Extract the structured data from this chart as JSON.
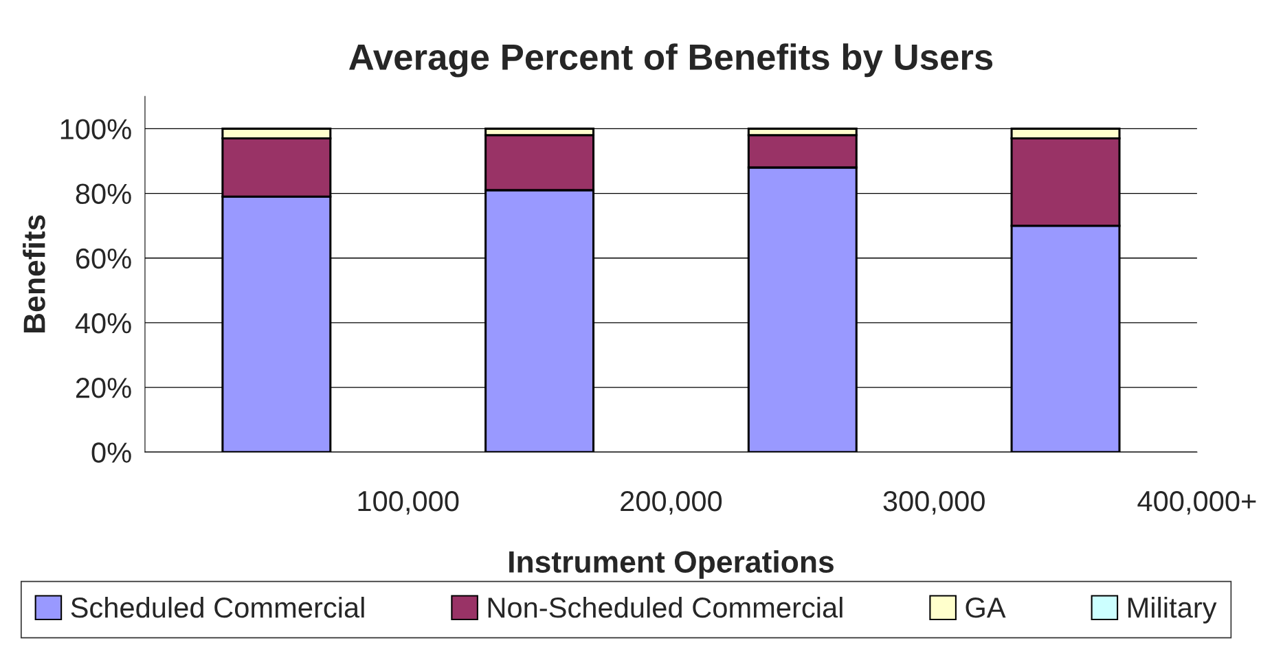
{
  "chart_data": {
    "type": "bar",
    "title": "Average Percent of Benefits by Users",
    "xlabel": "Instrument Operations",
    "ylabel": "Benefits",
    "categories": [
      "100,000",
      "200,000",
      "300,000",
      "400,000+"
    ],
    "stacked": true,
    "series": [
      {
        "name": "Scheduled Commercial",
        "color": "#9999ff",
        "values": [
          79,
          81,
          88,
          70
        ]
      },
      {
        "name": "Non-Scheduled Commercial",
        "color": "#993366",
        "values": [
          18,
          17,
          10,
          27
        ]
      },
      {
        "name": "GA",
        "color": "#ffffcc",
        "values": [
          3,
          2,
          2,
          3
        ]
      },
      {
        "name": "Military",
        "color": "#ccffff",
        "values": [
          null,
          null,
          null,
          null
        ]
      }
    ],
    "ylim": [
      0,
      110
    ],
    "yticks": [
      {
        "value": 0,
        "label": "0%"
      },
      {
        "value": 20,
        "label": "20%"
      },
      {
        "value": 40,
        "label": "40%"
      },
      {
        "value": 60,
        "label": "60%"
      },
      {
        "value": 80,
        "label": "80%"
      },
      {
        "value": 100,
        "label": "100%"
      }
    ],
    "grid": "y",
    "legend": "bottom"
  }
}
